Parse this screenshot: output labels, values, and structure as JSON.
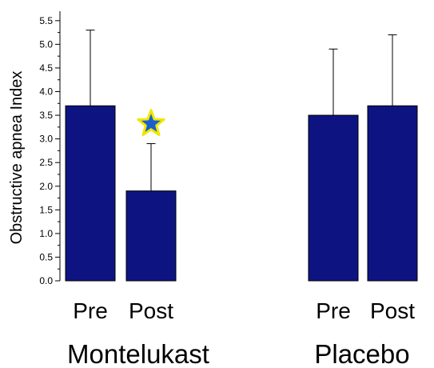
{
  "chart_data": {
    "type": "bar",
    "ylabel": "Obstructive apnea Index",
    "ylim": [
      0,
      5.7
    ],
    "y_ticks": [
      "0.0",
      "0.5",
      "1.0",
      "1.5",
      "2.0",
      "2.5",
      "3.0",
      "3.5",
      "4.0",
      "4.5",
      "5.0",
      "5.5"
    ],
    "grid": false,
    "colors": {
      "bar": "#0d1482",
      "star_fill": "#1a5fd0",
      "star_outline": "#f2e600"
    },
    "groups": [
      {
        "label": "Montelukast",
        "bars": [
          {
            "label": "Pre",
            "value": 3.7,
            "error": 1.6
          },
          {
            "label": "Post",
            "value": 1.9,
            "error": 1.0,
            "significance": "star-icon"
          }
        ]
      },
      {
        "label": "Placebo",
        "bars": [
          {
            "label": "Pre",
            "value": 3.5,
            "error": 1.4
          },
          {
            "label": "Post",
            "value": 3.7,
            "error": 1.5
          }
        ]
      }
    ]
  }
}
